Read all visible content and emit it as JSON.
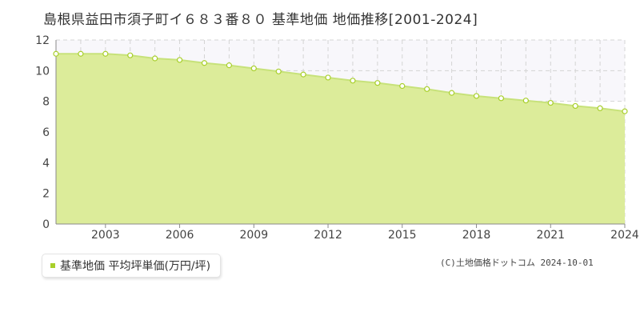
{
  "chart_data": {
    "type": "area",
    "title": "島根県益田市須子町イ６８３番８０ 基準地価 地価推移[2001-2024]",
    "xlabel": "",
    "ylabel": "",
    "x": [
      2001,
      2002,
      2003,
      2004,
      2005,
      2006,
      2007,
      2008,
      2009,
      2010,
      2011,
      2012,
      2013,
      2014,
      2015,
      2016,
      2017,
      2018,
      2019,
      2020,
      2021,
      2022,
      2023,
      2024
    ],
    "series": [
      {
        "name": "基準地価 平均坪単価(万円/坪)",
        "values": [
          11.1,
          11.1,
          11.1,
          11.0,
          10.8,
          10.7,
          10.5,
          10.35,
          10.15,
          9.95,
          9.75,
          9.55,
          9.35,
          9.2,
          9.0,
          8.8,
          8.55,
          8.35,
          8.2,
          8.05,
          7.9,
          7.7,
          7.55,
          7.35
        ]
      }
    ],
    "xlim": [
      2001,
      2024
    ],
    "ylim": [
      0,
      12
    ],
    "x_ticks": [
      "2003",
      "2006",
      "2009",
      "2012",
      "2015",
      "2018",
      "2021",
      "2024"
    ],
    "y_ticks": [
      "0",
      "2",
      "4",
      "6",
      "8",
      "10",
      "12"
    ],
    "grid": true,
    "legend_position": "bottom-left",
    "colors": {
      "line": "#c7e27a",
      "fill": "#dcec9a",
      "marker": "#a8cf2a",
      "grid": "#d4d4d4"
    }
  },
  "credit": "(C)土地価格ドットコム 2024-10-01"
}
